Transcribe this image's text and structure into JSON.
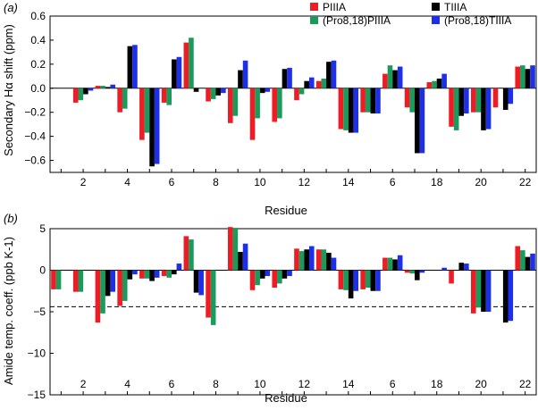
{
  "colors": {
    "PIIIA": "#ee1c24",
    "Pro8_18PIIIA": "#1a9b5c",
    "TIIIA": "#000000",
    "Pro8_18TIIIA": "#1e2fe8"
  },
  "legend": [
    {
      "key": "PIIIA",
      "label": "PIIIA"
    },
    {
      "key": "TIIIA",
      "label": "TIIIA"
    },
    {
      "key": "Pro8_18PIIIA",
      "label": "(Pro8,18)PIIIA"
    },
    {
      "key": "Pro8_18TIIIA",
      "label": "(Pro8,18)TIIIA"
    }
  ],
  "chart_data": [
    {
      "type": "bar",
      "panel_label": "(a)",
      "xlabel": "Residue",
      "ylabel": "Secondary Hα shift (ppm)",
      "ylim": [
        -0.7,
        0.6
      ],
      "yticks": [
        0.6,
        0.4,
        0.2,
        0.0,
        -0.2,
        -0.4,
        -0.6
      ],
      "ytick_labels": [
        "0.6",
        "0.4",
        "0.2",
        "0.0",
        "−0.2",
        "−0.4",
        "−0.6"
      ],
      "categories": [
        1,
        2,
        3,
        4,
        5,
        6,
        7,
        8,
        9,
        10,
        11,
        12,
        13,
        14,
        15,
        16,
        17,
        18,
        19,
        20,
        21,
        22
      ],
      "xtick_labels": [
        "",
        "2",
        "",
        "4",
        "",
        "6",
        "",
        "8",
        "",
        "10",
        "",
        "12",
        "",
        "14",
        "",
        "6",
        "",
        "18",
        "",
        "20",
        "",
        "22"
      ],
      "series": [
        {
          "name": "PIIIA",
          "values": [
            null,
            -0.12,
            0.02,
            -0.2,
            -0.43,
            -0.12,
            0.38,
            -0.11,
            -0.29,
            -0.43,
            -0.28,
            -0.1,
            0.06,
            -0.34,
            -0.2,
            0.12,
            -0.16,
            0.05,
            -0.32,
            -0.2,
            -0.16,
            0.18
          ]
        },
        {
          "name": "(Pro8,18)PIIIA",
          "values": [
            null,
            -0.1,
            0.02,
            -0.17,
            -0.37,
            -0.14,
            0.42,
            -0.09,
            -0.23,
            -0.25,
            -0.25,
            -0.05,
            0.08,
            -0.35,
            -0.2,
            0.19,
            -0.2,
            0.06,
            -0.35,
            -0.2,
            null,
            0.19
          ]
        },
        {
          "name": "TIIIA",
          "values": [
            null,
            -0.05,
            0.01,
            0.35,
            -0.65,
            0.24,
            -0.03,
            -0.06,
            0.15,
            -0.04,
            0.16,
            0.06,
            0.22,
            -0.37,
            -0.21,
            0.15,
            -0.54,
            0.08,
            -0.23,
            -0.35,
            -0.18,
            0.16
          ]
        },
        {
          "name": "(Pro8,18)TIIIA",
          "values": [
            null,
            -0.02,
            0.03,
            0.36,
            -0.63,
            0.26,
            null,
            -0.04,
            0.23,
            -0.03,
            0.17,
            0.09,
            0.23,
            -0.37,
            -0.21,
            0.18,
            -0.54,
            0.12,
            -0.21,
            -0.34,
            -0.13,
            0.19
          ]
        }
      ]
    },
    {
      "type": "bar",
      "panel_label": "(b)",
      "xlabel": "Residue",
      "ylabel": "Amide temp. coeff. (ppb K-1)",
      "ylim": [
        -15,
        5
      ],
      "yticks": [
        5,
        0,
        -5,
        -10,
        -15
      ],
      "ytick_labels": [
        "5",
        "0",
        "−5",
        "−10",
        "−15"
      ],
      "threshold": -4.4,
      "categories": [
        1,
        2,
        3,
        4,
        5,
        6,
        7,
        8,
        9,
        10,
        11,
        12,
        13,
        14,
        15,
        16,
        17,
        18,
        19,
        20,
        21,
        22
      ],
      "xtick_labels": [
        "",
        "2",
        "",
        "4",
        "",
        "6",
        "",
        "8",
        "",
        "10",
        "",
        "12",
        "",
        "14",
        "",
        "6",
        "",
        "18",
        "",
        "20",
        "",
        "22"
      ],
      "series": [
        {
          "name": "PIIIA",
          "values": [
            -2.3,
            -2.6,
            -6.3,
            -4.3,
            -1.0,
            -0.7,
            4.1,
            -5.7,
            5.2,
            -2.4,
            -2.1,
            2.6,
            2.5,
            -2.3,
            -2.3,
            1.5,
            -0.3,
            null,
            -1.6,
            -5.2,
            null,
            2.9
          ]
        },
        {
          "name": "(Pro8,18)PIIIA",
          "values": [
            -2.3,
            -2.6,
            -5.2,
            -3.7,
            -1.0,
            -0.9,
            3.7,
            -6.6,
            5.1,
            -1.8,
            -1.6,
            2.3,
            2.5,
            -2.4,
            -2.1,
            1.5,
            -0.4,
            null,
            null,
            -4.5,
            null,
            2.4
          ]
        },
        {
          "name": "TIIIA",
          "values": [
            null,
            null,
            -3.1,
            -1.1,
            -1.3,
            -0.5,
            -2.7,
            null,
            2.2,
            -1.0,
            -1.0,
            2.5,
            2.1,
            -3.4,
            -2.5,
            1.3,
            -1.2,
            null,
            0.9,
            -5.0,
            -6.3,
            1.6
          ]
        },
        {
          "name": "(Pro8,18)TIIIA",
          "values": [
            null,
            null,
            -2.6,
            -0.5,
            -0.9,
            0.8,
            -3.0,
            null,
            3.2,
            -0.7,
            -0.7,
            2.9,
            1.5,
            -2.5,
            -2.5,
            1.8,
            -0.3,
            0.3,
            0.8,
            -5.0,
            -6.1,
            2.0
          ]
        }
      ]
    }
  ]
}
